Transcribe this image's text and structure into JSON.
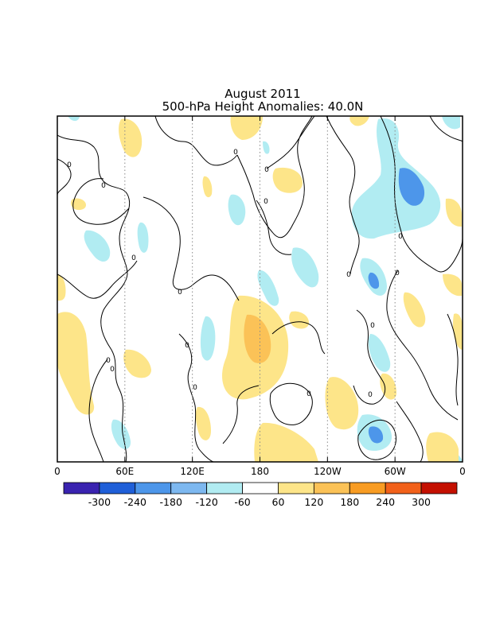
{
  "chart_data": {
    "type": "heatmap",
    "title": "August 2011",
    "subtitle": "500-hPa Height Anomalies: 40.0N",
    "x_axis": {
      "range": [
        "0",
        "0"
      ],
      "tick_labels": [
        "0",
        "60E",
        "120E",
        "180",
        "120W",
        "60W",
        "0"
      ],
      "tick_longitudes": [
        0,
        60,
        120,
        180,
        240,
        300,
        360
      ]
    },
    "colorbar": {
      "labels": [
        "-300",
        "-240",
        "-180",
        "-120",
        "-60",
        "60",
        "120",
        "180",
        "240",
        "300"
      ],
      "levels": [
        -300,
        -240,
        -180,
        -120,
        -60,
        60,
        120,
        180,
        240,
        300
      ],
      "colors": [
        "#3a23b0",
        "#1f5fd8",
        "#4d96ea",
        "#7db8f0",
        "#b1ecf2",
        "#ffffff",
        "#fde589",
        "#fbc257",
        "#f89c23",
        "#f2611a",
        "#c41000"
      ]
    },
    "contour_label": "0",
    "grid": "dotted vertical lines at 60° intervals"
  }
}
